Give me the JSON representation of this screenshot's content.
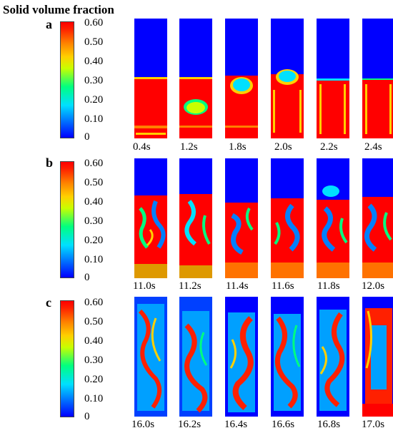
{
  "title": "Solid volume fraction",
  "colorbar": {
    "ticks": [
      "0.60",
      "0.50",
      "0.40",
      "0.30",
      "0.20",
      "0.10",
      "0"
    ],
    "colors": [
      "#0000ff",
      "#0080ff",
      "#00e0ff",
      "#00ff80",
      "#c8ff00",
      "#ffd000",
      "#ff8000",
      "#ff0000"
    ]
  },
  "rows": [
    {
      "letter": "a",
      "times": [
        "0.4s",
        "1.2s",
        "1.8s",
        "2.0s",
        "2.2s",
        "2.4s"
      ]
    },
    {
      "letter": "b",
      "times": [
        "11.0s",
        "11.2s",
        "11.4s",
        "11.6s",
        "11.8s",
        "12.0s"
      ]
    },
    {
      "letter": "c",
      "times": [
        "16.0s",
        "16.2s",
        "16.4s",
        "16.6s",
        "16.8s",
        "17.0s"
      ]
    }
  ]
}
